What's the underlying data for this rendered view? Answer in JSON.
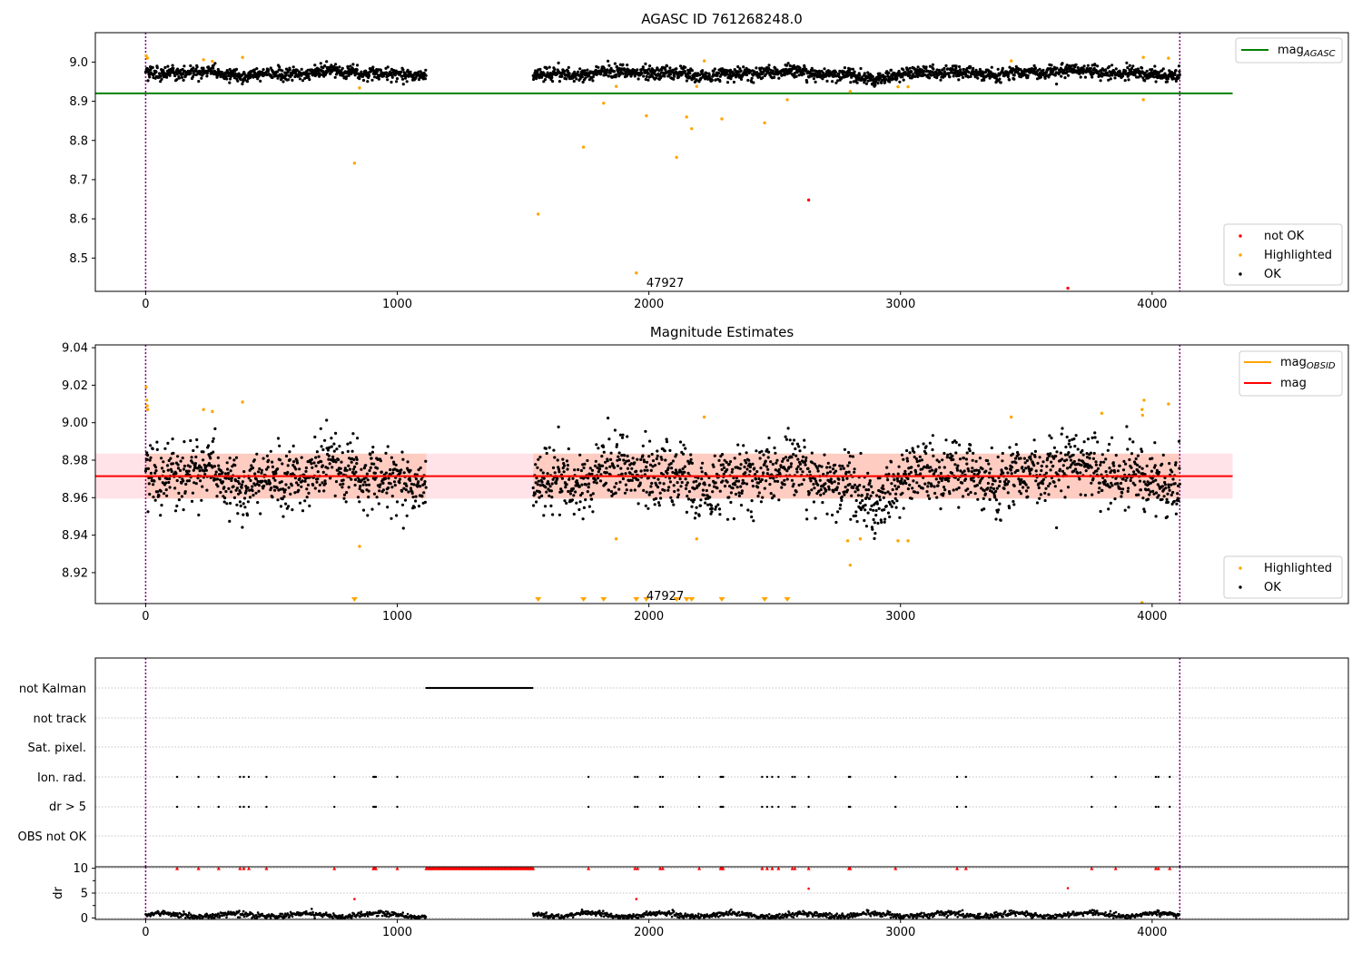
{
  "figure": {
    "annotation": "47927"
  },
  "colors": {
    "ok": "#000000",
    "highlighted": "#ffa500",
    "not_ok": "#ff0000",
    "mag_agasc": "#008000",
    "mag": "#ff0000",
    "mag_obsid": "#ffa500",
    "band": "#ffc0cb",
    "obs_limit": "#800080",
    "grid": "#b0b0b0"
  },
  "chart_data": [
    {
      "type": "scatter",
      "title": "AGASC ID 761268248.0",
      "xlim": [
        -200,
        4780
      ],
      "ylim": [
        8.415,
        9.075
      ],
      "xticks": [
        0,
        1000,
        2000,
        3000,
        4000
      ],
      "yticks": [
        8.5,
        8.6,
        8.7,
        8.8,
        8.9,
        9.0
      ],
      "ytick_labels": [
        "8.5",
        "8.6",
        "8.7",
        "8.8",
        "8.9",
        "9.0"
      ],
      "obs_boundaries": [
        0,
        4110
      ],
      "mag_agasc": 8.92,
      "mag_agasc_x_range": [
        -200,
        4320
      ],
      "ok_series": {
        "mean": 8.971,
        "scatter": 0.009,
        "segments": [
          [
            0,
            1115
          ],
          [
            1540,
            4110
          ]
        ]
      },
      "highlighted": [
        {
          "x": 2,
          "y": 9.016
        },
        {
          "x": 7,
          "y": 9.01
        },
        {
          "x": 230,
          "y": 9.006
        },
        {
          "x": 265,
          "y": 9.002
        },
        {
          "x": 385,
          "y": 9.012
        },
        {
          "x": 2220,
          "y": 9.003
        },
        {
          "x": 3440,
          "y": 9.003
        },
        {
          "x": 3965,
          "y": 9.012
        },
        {
          "x": 4065,
          "y": 9.01
        },
        {
          "x": 850,
          "y": 8.934
        },
        {
          "x": 1870,
          "y": 8.938
        },
        {
          "x": 2190,
          "y": 8.938
        },
        {
          "x": 2800,
          "y": 8.925
        },
        {
          "x": 2990,
          "y": 8.937
        },
        {
          "x": 3030,
          "y": 8.937
        },
        {
          "x": 3965,
          "y": 8.904
        },
        {
          "x": 2550,
          "y": 8.904
        },
        {
          "x": 1820,
          "y": 8.895
        },
        {
          "x": 1990,
          "y": 8.863
        },
        {
          "x": 2150,
          "y": 8.86
        },
        {
          "x": 2290,
          "y": 8.855
        },
        {
          "x": 2460,
          "y": 8.845
        },
        {
          "x": 2170,
          "y": 8.83
        },
        {
          "x": 1740,
          "y": 8.783
        },
        {
          "x": 2110,
          "y": 8.757
        },
        {
          "x": 830,
          "y": 8.742
        },
        {
          "x": 1560,
          "y": 8.612
        },
        {
          "x": 1950,
          "y": 8.462
        }
      ],
      "not_ok": [
        {
          "x": 2635,
          "y": 8.648
        },
        {
          "x": 3665,
          "y": 8.423
        }
      ],
      "annotation_pos": {
        "x": 1990,
        "y": 8.427
      },
      "legend_top": [
        {
          "label": "mag",
          "subscript": "AGASC",
          "color": "#008000"
        }
      ],
      "legend_bottom": [
        {
          "label": "not OK",
          "color": "#ff0000"
        },
        {
          "label": "Highlighted",
          "color": "#ffa500"
        },
        {
          "label": "OK",
          "color": "#000000"
        }
      ]
    },
    {
      "type": "scatter",
      "title": "Magnitude Estimates",
      "xlim": [
        -200,
        4780
      ],
      "ylim": [
        8.9035,
        9.0415
      ],
      "xticks": [
        0,
        1000,
        2000,
        3000,
        4000
      ],
      "yticks": [
        8.92,
        8.94,
        8.96,
        8.98,
        9.0,
        9.02,
        9.04
      ],
      "ytick_labels": [
        "8.92",
        "8.94",
        "8.96",
        "8.98",
        "9.00",
        "9.02",
        "9.04"
      ],
      "obs_boundaries": [
        0,
        4110
      ],
      "mag": 8.9715,
      "mag_obsid_segments": [
        [
          0,
          1115
        ],
        [
          1540,
          4110
        ]
      ],
      "band": [
        8.9595,
        8.9835
      ],
      "band_x_range": [
        -200,
        4320
      ],
      "ok_series": {
        "mean": 8.971,
        "scatter": 0.009,
        "segments": [
          [
            0,
            1115
          ],
          [
            1540,
            4110
          ]
        ]
      },
      "highlighted": [
        {
          "x": 2,
          "y": 9.019
        },
        {
          "x": 4,
          "y": 9.012
        },
        {
          "x": 6,
          "y": 9.009
        },
        {
          "x": 8,
          "y": 9.007
        },
        {
          "x": 230,
          "y": 9.007
        },
        {
          "x": 265,
          "y": 9.006
        },
        {
          "x": 385,
          "y": 9.011
        },
        {
          "x": 2220,
          "y": 9.003
        },
        {
          "x": 3440,
          "y": 9.003
        },
        {
          "x": 3800,
          "y": 9.005
        },
        {
          "x": 3960,
          "y": 9.007
        },
        {
          "x": 3962,
          "y": 9.004
        },
        {
          "x": 3968,
          "y": 9.012
        },
        {
          "x": 4065,
          "y": 9.01
        },
        {
          "x": 850,
          "y": 8.934
        },
        {
          "x": 1870,
          "y": 8.938
        },
        {
          "x": 2190,
          "y": 8.938
        },
        {
          "x": 2800,
          "y": 8.924
        },
        {
          "x": 2790,
          "y": 8.937
        },
        {
          "x": 2840,
          "y": 8.938
        },
        {
          "x": 2990,
          "y": 8.937
        },
        {
          "x": 3030,
          "y": 8.937
        },
        {
          "x": 3960,
          "y": 8.904
        }
      ],
      "offscale_x": [
        830,
        1560,
        1740,
        1820,
        1950,
        1990,
        2110,
        2150,
        2170,
        2290,
        2460,
        2550
      ],
      "annotation_pos": {
        "x": 1990,
        "y": 8.9055
      },
      "legend_top": [
        {
          "label": "mag",
          "subscript": "OBSID",
          "color": "#ffa500"
        },
        {
          "label": "mag",
          "subscript": "",
          "color": "#ff0000"
        }
      ],
      "legend_bottom": [
        {
          "label": "Highlighted",
          "color": "#ffa500"
        },
        {
          "label": "OK",
          "color": "#000000"
        }
      ]
    },
    {
      "type": "scatter",
      "title": "",
      "xlim": [
        -200,
        4780
      ],
      "xticks": [
        0,
        1000,
        2000,
        3000,
        4000
      ],
      "obs_boundaries": [
        0,
        4110
      ],
      "flag_rows": [
        "not Kalman",
        "not track",
        "Sat. pixel.",
        "Ion. rad.",
        "dr > 5",
        "OBS not OK"
      ],
      "not_kalman_range": [
        1115,
        1540
      ],
      "event_x": [
        125,
        210,
        290,
        375,
        390,
        410,
        480,
        750,
        905,
        910,
        915,
        1000,
        1760,
        1945,
        1955,
        2045,
        2055,
        2200,
        2285,
        2290,
        2295,
        2450,
        2470,
        2490,
        2515,
        2570,
        2580,
        2635,
        2795,
        2800,
        2980,
        3225,
        3260,
        3760,
        3855,
        4015,
        4025,
        4070
      ],
      "dr": {
        "ylabel": "dr",
        "ylim": [
          -0.3,
          10.3
        ],
        "yticks": [
          0,
          5,
          10
        ],
        "ytick_labels": [
          "0",
          "5",
          "10"
        ],
        "minor_yticks": [
          2.5,
          7.5
        ],
        "clip_value": 10,
        "mean": 0.6,
        "segments": [
          [
            0,
            1115
          ],
          [
            1540,
            4110
          ]
        ],
        "outliers": [
          {
            "x": 830,
            "y": 3.8
          },
          {
            "x": 1950,
            "y": 3.8
          },
          {
            "x": 2635,
            "y": 5.9
          },
          {
            "x": 3665,
            "y": 6.0
          }
        ]
      }
    }
  ]
}
